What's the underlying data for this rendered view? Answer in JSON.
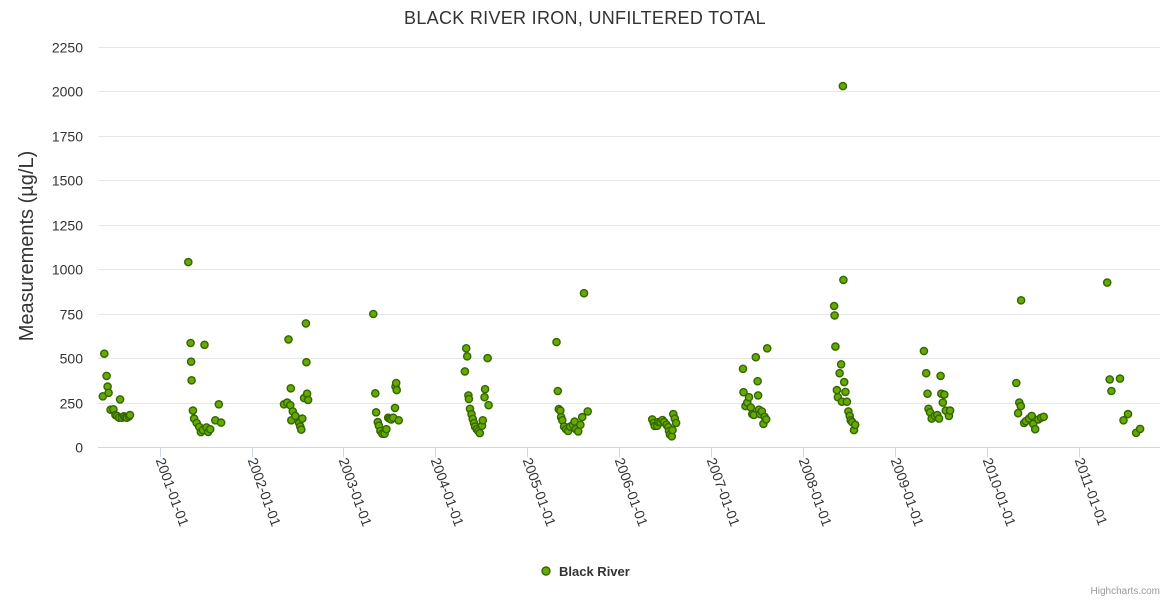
{
  "chart_data": {
    "type": "scatter",
    "title": "BLACK RIVER IRON, UNFILTERED TOTAL",
    "ylabel": "Measurements (µg/L)",
    "xlabel": "",
    "ylim": [
      0,
      2250
    ],
    "yticks": [
      0,
      250,
      500,
      750,
      1000,
      1250,
      1500,
      1750,
      2000,
      2250
    ],
    "xlim": [
      "2000-05-01",
      "2011-11-20"
    ],
    "xticks": [
      "2001-01-01",
      "2002-01-01",
      "2003-01-01",
      "2004-01-01",
      "2005-01-01",
      "2006-01-01",
      "2007-01-01",
      "2008-01-01",
      "2009-01-01",
      "2010-01-01",
      "2011-01-01"
    ],
    "grid": true,
    "legend_position": "bottom-center",
    "series": [
      {
        "name": "Black River",
        "color": "#66aa00",
        "stroke": "#336600",
        "points": [
          [
            "2000-05-20",
            285
          ],
          [
            "2000-05-26",
            525
          ],
          [
            "2000-06-04",
            400
          ],
          [
            "2000-06-08",
            340
          ],
          [
            "2000-06-12",
            305
          ],
          [
            "2000-06-20",
            210
          ],
          [
            "2000-07-01",
            212
          ],
          [
            "2000-07-09",
            180
          ],
          [
            "2000-07-16",
            175
          ],
          [
            "2000-07-24",
            165
          ],
          [
            "2000-07-28",
            268
          ],
          [
            "2000-08-04",
            165
          ],
          [
            "2000-08-12",
            173
          ],
          [
            "2000-08-18",
            167
          ],
          [
            "2000-08-24",
            165
          ],
          [
            "2000-09-01",
            172
          ],
          [
            "2000-09-05",
            180
          ],
          [
            "2001-04-25",
            1040
          ],
          [
            "2001-05-04",
            585
          ],
          [
            "2001-05-06",
            480
          ],
          [
            "2001-05-08",
            375
          ],
          [
            "2001-05-13",
            205
          ],
          [
            "2001-05-18",
            160
          ],
          [
            "2001-05-28",
            135
          ],
          [
            "2001-06-07",
            113
          ],
          [
            "2001-06-14",
            84
          ],
          [
            "2001-06-22",
            95
          ],
          [
            "2001-06-28",
            575
          ],
          [
            "2001-07-06",
            110
          ],
          [
            "2001-07-13",
            85
          ],
          [
            "2001-07-21",
            100
          ],
          [
            "2001-08-10",
            150
          ],
          [
            "2001-08-24",
            240
          ],
          [
            "2001-09-02",
            137
          ],
          [
            "2002-05-10",
            240
          ],
          [
            "2002-05-23",
            250
          ],
          [
            "2002-05-28",
            605
          ],
          [
            "2002-06-04",
            235
          ],
          [
            "2002-06-06",
            330
          ],
          [
            "2002-06-08",
            150
          ],
          [
            "2002-06-14",
            200
          ],
          [
            "2002-06-24",
            175
          ],
          [
            "2002-07-09",
            135
          ],
          [
            "2002-07-14",
            115
          ],
          [
            "2002-07-18",
            98
          ],
          [
            "2002-07-22",
            160
          ],
          [
            "2002-07-29",
            275
          ],
          [
            "2002-08-05",
            695
          ],
          [
            "2002-08-07",
            477
          ],
          [
            "2002-08-10",
            300
          ],
          [
            "2002-08-14",
            265
          ],
          [
            "2003-04-30",
            748
          ],
          [
            "2003-05-08",
            302
          ],
          [
            "2003-05-11",
            195
          ],
          [
            "2003-05-18",
            140
          ],
          [
            "2003-05-22",
            120
          ],
          [
            "2003-05-28",
            90
          ],
          [
            "2003-06-05",
            75
          ],
          [
            "2003-06-14",
            75
          ],
          [
            "2003-06-21",
            100
          ],
          [
            "2003-06-28",
            165
          ],
          [
            "2003-07-04",
            160
          ],
          [
            "2003-07-10",
            155
          ],
          [
            "2003-07-18",
            165
          ],
          [
            "2003-07-25",
            220
          ],
          [
            "2003-07-27",
            340
          ],
          [
            "2003-07-30",
            360
          ],
          [
            "2003-08-01",
            320
          ],
          [
            "2003-08-09",
            150
          ],
          [
            "2004-04-28",
            425
          ],
          [
            "2004-05-03",
            555
          ],
          [
            "2004-05-07",
            510
          ],
          [
            "2004-05-12",
            290
          ],
          [
            "2004-05-14",
            270
          ],
          [
            "2004-05-18",
            215
          ],
          [
            "2004-05-24",
            185
          ],
          [
            "2004-05-29",
            158
          ],
          [
            "2004-06-03",
            135
          ],
          [
            "2004-06-07",
            115
          ],
          [
            "2004-06-14",
            100
          ],
          [
            "2004-06-20",
            90
          ],
          [
            "2004-06-26",
            78
          ],
          [
            "2004-07-05",
            120
          ],
          [
            "2004-07-08",
            150
          ],
          [
            "2004-07-15",
            280
          ],
          [
            "2004-07-17",
            325
          ],
          [
            "2004-07-27",
            500
          ],
          [
            "2004-07-31",
            235
          ],
          [
            "2005-04-27",
            590
          ],
          [
            "2005-05-02",
            315
          ],
          [
            "2005-05-06",
            213
          ],
          [
            "2005-05-12",
            205
          ],
          [
            "2005-05-15",
            168
          ],
          [
            "2005-05-20",
            150
          ],
          [
            "2005-05-27",
            115
          ],
          [
            "2005-06-04",
            100
          ],
          [
            "2005-06-12",
            90
          ],
          [
            "2005-06-20",
            115
          ],
          [
            "2005-07-01",
            125
          ],
          [
            "2005-07-08",
            143
          ],
          [
            "2005-07-13",
            100
          ],
          [
            "2005-07-22",
            88
          ],
          [
            "2005-07-31",
            125
          ],
          [
            "2005-08-07",
            168
          ],
          [
            "2005-08-14",
            865
          ],
          [
            "2005-08-29",
            200
          ],
          [
            "2006-05-12",
            155
          ],
          [
            "2006-05-18",
            135
          ],
          [
            "2006-05-22",
            118
          ],
          [
            "2006-06-01",
            120
          ],
          [
            "2006-06-06",
            140
          ],
          [
            "2006-06-14",
            140
          ],
          [
            "2006-06-22",
            152
          ],
          [
            "2006-06-29",
            140
          ],
          [
            "2006-07-08",
            125
          ],
          [
            "2006-07-15",
            112
          ],
          [
            "2006-07-18",
            90
          ],
          [
            "2006-07-22",
            70
          ],
          [
            "2006-07-29",
            60
          ],
          [
            "2006-08-01",
            95
          ],
          [
            "2006-08-04",
            185
          ],
          [
            "2006-08-10",
            160
          ],
          [
            "2006-08-15",
            135
          ],
          [
            "2007-05-08",
            440
          ],
          [
            "2007-05-10",
            308
          ],
          [
            "2007-05-18",
            230
          ],
          [
            "2007-05-25",
            250
          ],
          [
            "2007-06-01",
            280
          ],
          [
            "2007-06-08",
            222
          ],
          [
            "2007-06-14",
            185
          ],
          [
            "2007-06-20",
            180
          ],
          [
            "2007-06-28",
            505
          ],
          [
            "2007-07-05",
            370
          ],
          [
            "2007-07-07",
            290
          ],
          [
            "2007-07-10",
            210
          ],
          [
            "2007-07-15",
            185
          ],
          [
            "2007-07-22",
            200
          ],
          [
            "2007-07-28",
            130
          ],
          [
            "2007-08-02",
            170
          ],
          [
            "2007-08-08",
            155
          ],
          [
            "2007-08-12",
            555
          ],
          [
            "2008-05-04",
            793
          ],
          [
            "2008-05-06",
            740
          ],
          [
            "2008-05-09",
            565
          ],
          [
            "2008-05-15",
            320
          ],
          [
            "2008-05-19",
            280
          ],
          [
            "2008-05-26",
            415
          ],
          [
            "2008-06-01",
            465
          ],
          [
            "2008-06-04",
            255
          ],
          [
            "2008-06-08",
            2030
          ],
          [
            "2008-06-10",
            940
          ],
          [
            "2008-06-13",
            365
          ],
          [
            "2008-06-18",
            310
          ],
          [
            "2008-06-24",
            255
          ],
          [
            "2008-06-30",
            200
          ],
          [
            "2008-07-05",
            175
          ],
          [
            "2008-07-09",
            150
          ],
          [
            "2008-07-15",
            140
          ],
          [
            "2008-07-22",
            95
          ],
          [
            "2008-07-27",
            125
          ],
          [
            "2009-04-26",
            540
          ],
          [
            "2009-05-05",
            415
          ],
          [
            "2009-05-10",
            300
          ],
          [
            "2009-05-14",
            215
          ],
          [
            "2009-05-20",
            195
          ],
          [
            "2009-05-27",
            160
          ],
          [
            "2009-06-08",
            175
          ],
          [
            "2009-06-18",
            180
          ],
          [
            "2009-06-25",
            160
          ],
          [
            "2009-07-01",
            400
          ],
          [
            "2009-07-04",
            300
          ],
          [
            "2009-07-10",
            250
          ],
          [
            "2009-07-16",
            295
          ],
          [
            "2009-07-22",
            205
          ],
          [
            "2009-08-03",
            175
          ],
          [
            "2009-08-08",
            205
          ],
          [
            "2010-04-28",
            360
          ],
          [
            "2010-05-05",
            190
          ],
          [
            "2010-05-10",
            250
          ],
          [
            "2010-05-16",
            230
          ],
          [
            "2010-05-17",
            825
          ],
          [
            "2010-05-29",
            135
          ],
          [
            "2010-06-05",
            145
          ],
          [
            "2010-06-18",
            160
          ],
          [
            "2010-06-28",
            175
          ],
          [
            "2010-07-04",
            130
          ],
          [
            "2010-07-12",
            100
          ],
          [
            "2010-07-25",
            155
          ],
          [
            "2010-08-05",
            165
          ],
          [
            "2010-08-15",
            170
          ],
          [
            "2011-04-24",
            925
          ],
          [
            "2011-05-04",
            380
          ],
          [
            "2011-05-11",
            315
          ],
          [
            "2011-06-14",
            385
          ],
          [
            "2011-06-28",
            150
          ],
          [
            "2011-07-16",
            185
          ],
          [
            "2011-08-17",
            80
          ],
          [
            "2011-09-02",
            102
          ]
        ]
      }
    ]
  },
  "credits": "Highcharts.com"
}
